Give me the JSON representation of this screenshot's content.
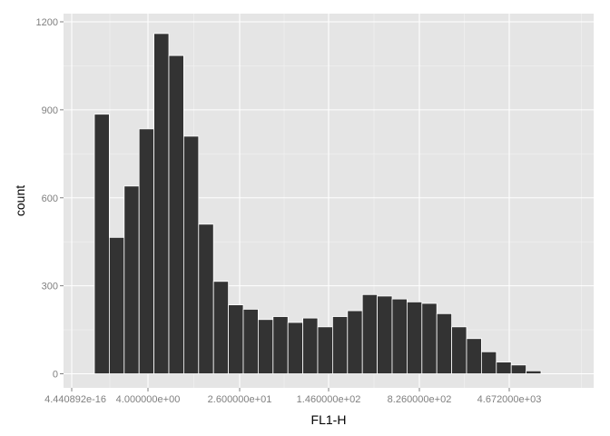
{
  "chart_data": {
    "type": "bar",
    "title": "",
    "xlabel": "FL1-H",
    "ylabel": "count",
    "ylim": [
      0,
      1200
    ],
    "y_ticks": [
      0,
      300,
      600,
      900,
      1200
    ],
    "y_tick_labels": [
      "0",
      "300",
      "600",
      "900",
      "1200"
    ],
    "x_tick_labels": [
      "4.440892e-16",
      "4.000000e+00",
      "2.600000e+01",
      "1.460000e+02",
      "8.260000e+02",
      "4.672000e+03"
    ],
    "grid": true,
    "bar_color": "#333333",
    "panel_color": "#e5e5e5",
    "values": [
      885,
      465,
      640,
      835,
      1160,
      1085,
      810,
      510,
      315,
      235,
      220,
      185,
      195,
      175,
      190,
      160,
      195,
      215,
      270,
      265,
      255,
      245,
      240,
      205,
      160,
      120,
      75,
      40,
      30,
      10
    ]
  }
}
